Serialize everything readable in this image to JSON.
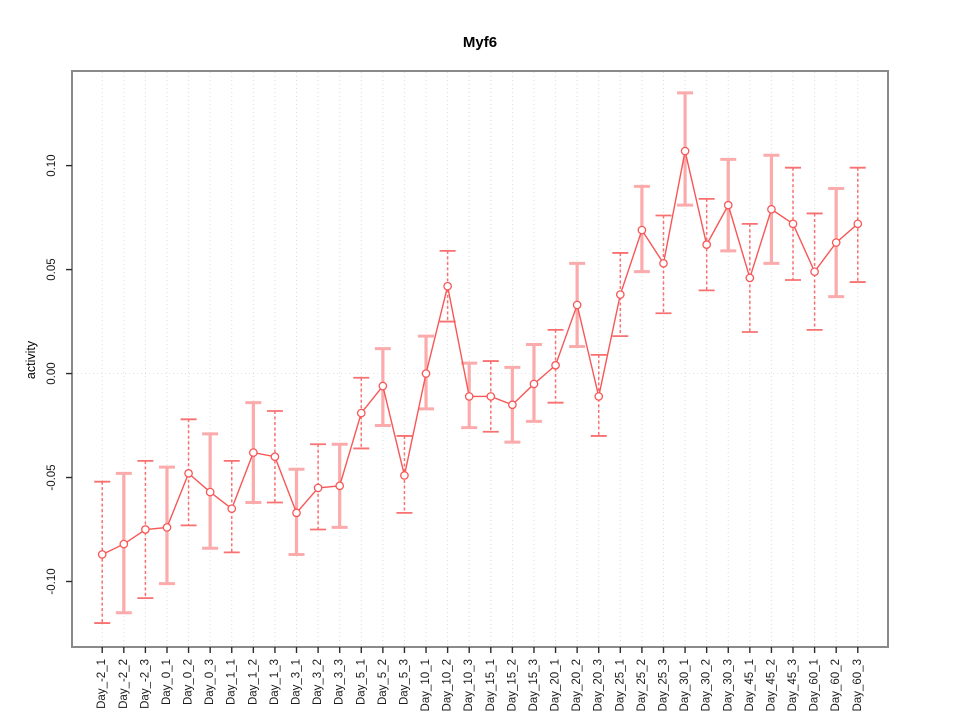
{
  "chart_data": {
    "type": "line",
    "title": "Myf6",
    "ylabel": "activity",
    "xlabel": "",
    "legend": "none",
    "categories": [
      "Day_-2_1",
      "Day_-2_2",
      "Day_-2_3",
      "Day_0_1",
      "Day_0_2",
      "Day_0_3",
      "Day_1_1",
      "Day_1_2",
      "Day_1_3",
      "Day_3_1",
      "Day_3_2",
      "Day_3_3",
      "Day_5_1",
      "Day_5_2",
      "Day_5_3",
      "Day_10_1",
      "Day_10_2",
      "Day_10_3",
      "Day_15_1",
      "Day_15_2",
      "Day_15_3",
      "Day_20_1",
      "Day_20_2",
      "Day_20_3",
      "Day_25_1",
      "Day_25_2",
      "Day_25_3",
      "Day_30_1",
      "Day_30_2",
      "Day_30_3",
      "Day_45_1",
      "Day_45_2",
      "Day_45_3",
      "Day_60_1",
      "Day_60_2",
      "Day_60_3"
    ],
    "series": [
      {
        "name": "activity",
        "marker": "open-circle",
        "values": [
          -0.087,
          -0.082,
          -0.075,
          -0.074,
          -0.048,
          -0.057,
          -0.065,
          -0.038,
          -0.04,
          -0.067,
          -0.055,
          -0.054,
          -0.019,
          -0.006,
          -0.049,
          0.0,
          0.042,
          -0.011,
          -0.011,
          -0.015,
          -0.005,
          0.004,
          0.033,
          -0.011,
          0.038,
          0.069,
          0.053,
          0.107,
          0.062,
          0.081,
          0.046,
          0.079,
          0.072,
          0.049,
          0.063,
          0.072
        ],
        "error_low": [
          -0.12,
          -0.115,
          -0.108,
          -0.101,
          -0.073,
          -0.084,
          -0.086,
          -0.062,
          -0.062,
          -0.087,
          -0.075,
          -0.074,
          -0.036,
          -0.025,
          -0.067,
          -0.017,
          0.025,
          -0.026,
          -0.028,
          -0.033,
          -0.023,
          -0.014,
          0.013,
          -0.03,
          0.018,
          0.049,
          0.029,
          0.081,
          0.04,
          0.059,
          0.02,
          0.053,
          0.045,
          0.021,
          0.037,
          0.044
        ],
        "error_high": [
          -0.052,
          -0.048,
          -0.042,
          -0.045,
          -0.022,
          -0.029,
          -0.042,
          -0.014,
          -0.018,
          -0.046,
          -0.034,
          -0.034,
          -0.002,
          0.012,
          -0.03,
          0.018,
          0.059,
          0.005,
          0.006,
          0.003,
          0.014,
          0.021,
          0.053,
          0.009,
          0.058,
          0.09,
          0.076,
          0.135,
          0.084,
          0.103,
          0.072,
          0.105,
          0.099,
          0.077,
          0.089,
          0.099
        ]
      }
    ],
    "bar_styles": [
      "dashed",
      "light",
      "dashed",
      "light",
      "dashed",
      "light",
      "dashed",
      "light",
      "dashed",
      "light",
      "dashed",
      "light",
      "dashed",
      "light",
      "dashed",
      "light",
      "dashed",
      "light",
      "dashed",
      "light",
      "light",
      "dashed",
      "light",
      "dashed",
      "dashed",
      "light",
      "dashed",
      "light",
      "dashed",
      "light",
      "dashed",
      "light",
      "dashed",
      "dashed",
      "light",
      "dashed"
    ],
    "yticks": [
      -0.1,
      -0.05,
      0.0,
      0.05,
      0.1
    ],
    "ytick_labels": [
      "-0.10",
      "-0.05",
      "0.00",
      "0.05",
      "0.10"
    ],
    "ylim": [
      -0.1315,
      0.1455
    ],
    "grid": {
      "vertical_dotted_at_each_x": true,
      "horizontal_dotted_zero_line": true
    },
    "colors": {
      "point": "#f75757",
      "line": "#f75757",
      "errorbar_dashed": "#f87070",
      "errorbar_light": "#fbabab",
      "grid": "#dcdcdc",
      "zero_line": "#e2e2e2",
      "box": "#8a8a8a",
      "tick": "#2b2b2b",
      "text": "#1a1a1a"
    }
  }
}
